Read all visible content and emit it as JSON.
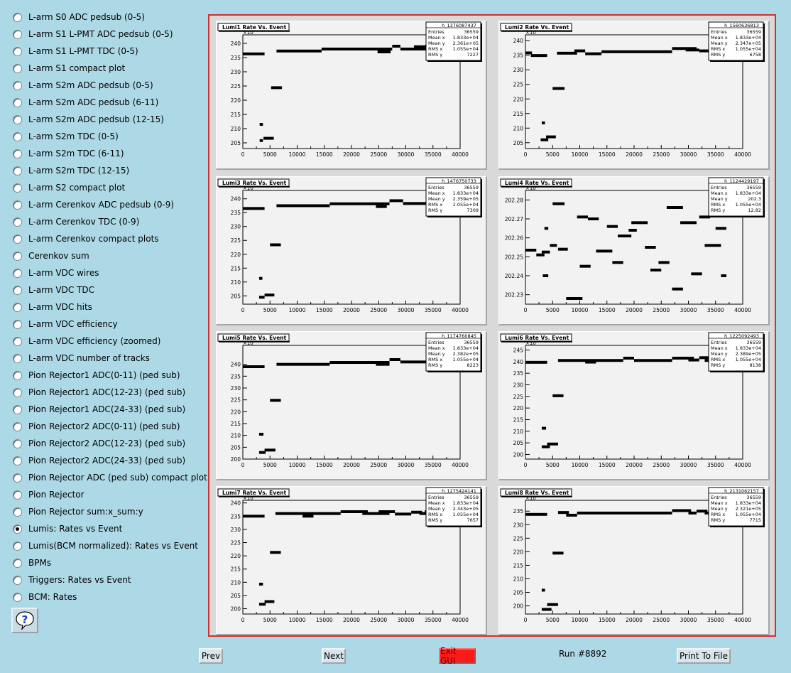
{
  "sidebar": {
    "items": [
      {
        "label": "L-arm S0 ADC pedsub (0-5)",
        "checked": false
      },
      {
        "label": "L-arm S1 L-PMT ADC pedsub (0-5)",
        "checked": false
      },
      {
        "label": "L-arm S1 L-PMT TDC (0-5)",
        "checked": false
      },
      {
        "label": "L-arm S1 compact plot",
        "checked": false
      },
      {
        "label": "L-arm S2m ADC pedsub (0-5)",
        "checked": false
      },
      {
        "label": "L-arm S2m ADC pedsub (6-11)",
        "checked": false
      },
      {
        "label": "L-arm S2m ADC pedsub (12-15)",
        "checked": false
      },
      {
        "label": "L-arm S2m TDC (0-5)",
        "checked": false
      },
      {
        "label": "L-arm S2m TDC (6-11)",
        "checked": false
      },
      {
        "label": "L-arm S2m TDC (12-15)",
        "checked": false
      },
      {
        "label": "L-arm S2 compact plot",
        "checked": false
      },
      {
        "label": "L-arm Cerenkov ADC pedsub (0-9)",
        "checked": false
      },
      {
        "label": "L-arm Cerenkov TDC (0-9)",
        "checked": false
      },
      {
        "label": "L-arm Cerenkov compact plots",
        "checked": false
      },
      {
        "label": "Cerenkov sum",
        "checked": false
      },
      {
        "label": "L-arm VDC wires",
        "checked": false
      },
      {
        "label": "L-arm VDC TDC",
        "checked": false
      },
      {
        "label": "L-arm VDC hits",
        "checked": false
      },
      {
        "label": "L-arm VDC efficiency",
        "checked": false
      },
      {
        "label": "L-arm VDC efficiency (zoomed)",
        "checked": false
      },
      {
        "label": "L-arm VDC number of tracks",
        "checked": false
      },
      {
        "label": "Pion Rejector1 ADC(0-11) (ped sub)",
        "checked": false
      },
      {
        "label": "Pion Rejector1 ADC(12-23) (ped sub)",
        "checked": false
      },
      {
        "label": "Pion Rejector1 ADC(24-33) (ped sub)",
        "checked": false
      },
      {
        "label": "Pion Rejector2 ADC(0-11) (ped sub)",
        "checked": false
      },
      {
        "label": "Pion Rejector2 ADC(12-23) (ped sub)",
        "checked": false
      },
      {
        "label": "Pion Rejector2 ADC(24-33) (ped sub)",
        "checked": false
      },
      {
        "label": "Pion Rejector ADC (ped sub) compact plot",
        "checked": false
      },
      {
        "label": "Pion Rejector",
        "checked": false
      },
      {
        "label": "Pion Rejector sum:x_sum:y",
        "checked": false
      },
      {
        "label": "Lumis: Rates vs Event",
        "checked": true
      },
      {
        "label": "Lumis(BCM normalized): Rates vs Event",
        "checked": false
      },
      {
        "label": "BPMs",
        "checked": false
      },
      {
        "label": "Triggers: Rates vs Event",
        "checked": false
      },
      {
        "label": "BCM: Rates",
        "checked": false
      }
    ],
    "help_icon": "question-mark-icon"
  },
  "footer": {
    "prev_label": "Prev",
    "next_label": "Next",
    "exit_label": "Exit GUI",
    "run_label": "Run #8892",
    "print_label": "Print To File",
    "exit_color": "#ff1a1a"
  },
  "chart_data": [
    {
      "type": "scatter",
      "title": "Lumi1 Rate Vs. Event",
      "exponent_label": "×10",
      "xlim": [
        0,
        40000
      ],
      "ylim": [
        203,
        243
      ],
      "xticks": [
        0,
        5000,
        10000,
        15000,
        20000,
        25000,
        30000,
        35000,
        40000
      ],
      "yticks": [
        205,
        210,
        215,
        220,
        225,
        230,
        235,
        240
      ],
      "stats": {
        "name": "h_1376087437",
        "entries": "36559",
        "mean_x": "1.833e+04",
        "mean_y": "2.361e+05",
        "rms_x": "1.055e+04",
        "rms_y": "7227"
      },
      "segments": [
        [
          0,
          4000,
          236.3
        ],
        [
          3100,
          3700,
          211.5
        ],
        [
          3100,
          3700,
          205.8
        ],
        [
          3800,
          5700,
          206.6
        ],
        [
          5200,
          7200,
          224.4
        ],
        [
          6200,
          14500,
          237.3
        ],
        [
          14500,
          27500,
          238.0
        ],
        [
          24800,
          27200,
          237.0
        ],
        [
          27500,
          29000,
          239.0
        ],
        [
          29000,
          36000,
          238.0
        ],
        [
          31500,
          33500,
          238.8
        ],
        [
          33500,
          36500,
          239.0
        ]
      ]
    },
    {
      "type": "scatter",
      "title": "Lumi2 Rate Vs. Event",
      "exponent_label": "×10",
      "xlim": [
        0,
        40000
      ],
      "ylim": [
        203,
        242
      ],
      "xticks": [
        0,
        5000,
        10000,
        15000,
        20000,
        25000,
        30000,
        35000,
        40000
      ],
      "yticks": [
        205,
        210,
        215,
        220,
        225,
        230,
        235,
        240
      ],
      "stats": {
        "name": "h_1560636813",
        "entries": "36559",
        "mean_x": "1.833e+04",
        "mean_y": "2.347e+05",
        "rms_x": "1.055e+04",
        "rms_y": "6758"
      },
      "segments": [
        [
          0,
          1200,
          235.8
        ],
        [
          1000,
          4000,
          234.9
        ],
        [
          3000,
          3600,
          211.8
        ],
        [
          2800,
          4200,
          206.0
        ],
        [
          3800,
          5600,
          207.0
        ],
        [
          5000,
          7200,
          223.6
        ],
        [
          5800,
          9500,
          235.7
        ],
        [
          9000,
          11000,
          236.5
        ],
        [
          11000,
          14000,
          235.5
        ],
        [
          14000,
          27000,
          236.2
        ],
        [
          27000,
          31500,
          237.3
        ],
        [
          29500,
          32000,
          236.8
        ],
        [
          32000,
          34000,
          236.5
        ],
        [
          34000,
          36500,
          237.2
        ]
      ]
    },
    {
      "type": "scatter",
      "title": "Lumi3 Rate Vs. Event",
      "exponent_label": "×10",
      "xlim": [
        0,
        40000
      ],
      "ylim": [
        202,
        243
      ],
      "xticks": [
        0,
        5000,
        10000,
        15000,
        20000,
        25000,
        30000,
        35000,
        40000
      ],
      "yticks": [
        205,
        210,
        215,
        220,
        225,
        230,
        235,
        240
      ],
      "stats": {
        "name": "h_1476750733",
        "entries": "36559",
        "mean_x": "1.833e+04",
        "mean_y": "2.359e+05",
        "rms_x": "1.055e+04",
        "rms_y": "7309"
      },
      "segments": [
        [
          0,
          4000,
          236.5
        ],
        [
          3000,
          3600,
          211.3
        ],
        [
          3000,
          4000,
          204.5
        ],
        [
          4000,
          5800,
          205.3
        ],
        [
          5000,
          7000,
          223.4
        ],
        [
          6200,
          16000,
          237.5
        ],
        [
          16000,
          27000,
          238.2
        ],
        [
          24500,
          26500,
          237.2
        ],
        [
          27000,
          29500,
          239.3
        ],
        [
          29500,
          36500,
          238.3
        ]
      ]
    },
    {
      "type": "scatter",
      "title": "Lumi4 Rate Vs. Event",
      "exponent_label": "×10",
      "xlim": [
        0,
        40000
      ],
      "ylim": [
        202.225,
        202.285
      ],
      "xticks": [
        0,
        5000,
        10000,
        15000,
        20000,
        25000,
        30000,
        35000,
        40000
      ],
      "yticks": [
        202.23,
        202.24,
        202.25,
        202.26,
        202.27,
        202.28
      ],
      "stats": {
        "name": "h_1124429197",
        "entries": "36559",
        "mean_x": "1.833e+04",
        "mean_y": "202.3",
        "rms_x": "1.055e+04",
        "rms_y": "12.82"
      },
      "segments": [
        [
          0,
          2000,
          202.2535
        ],
        [
          2000,
          3500,
          202.251
        ],
        [
          3000,
          4500,
          202.2525
        ],
        [
          3500,
          4200,
          202.265
        ],
        [
          3200,
          4200,
          202.24
        ],
        [
          4500,
          5800,
          202.256
        ],
        [
          5000,
          7200,
          202.278
        ],
        [
          6000,
          7800,
          202.254
        ],
        [
          7500,
          10500,
          202.228
        ],
        [
          9500,
          11500,
          202.271
        ],
        [
          10000,
          12000,
          202.245
        ],
        [
          11500,
          13500,
          202.27
        ],
        [
          13000,
          16000,
          202.253
        ],
        [
          15000,
          17000,
          202.266
        ],
        [
          16000,
          18000,
          202.247
        ],
        [
          17000,
          19500,
          202.261
        ],
        [
          19000,
          20500,
          202.264
        ],
        [
          19500,
          22500,
          202.268
        ],
        [
          22000,
          24000,
          202.255
        ],
        [
          23000,
          25000,
          202.243
        ],
        [
          24500,
          26500,
          202.247
        ],
        [
          26000,
          29000,
          202.276
        ],
        [
          27000,
          29000,
          202.233
        ],
        [
          28500,
          31500,
          202.268
        ],
        [
          30500,
          32500,
          202.241
        ],
        [
          32000,
          34000,
          202.271
        ],
        [
          33000,
          36000,
          202.256
        ],
        [
          35000,
          37000,
          202.265
        ],
        [
          36000,
          37000,
          202.24
        ]
      ]
    },
    {
      "type": "scatter",
      "title": "Lumi5 Rate Vs. Event",
      "exponent_label": "×10",
      "xlim": [
        0,
        40000
      ],
      "ylim": [
        200,
        248
      ],
      "xticks": [
        0,
        5000,
        10000,
        15000,
        20000,
        25000,
        30000,
        35000,
        40000
      ],
      "yticks": [
        200,
        205,
        210,
        215,
        220,
        225,
        230,
        235,
        240
      ],
      "stats": {
        "name": "h_1174760845",
        "entries": "36559",
        "mean_x": "1.833e+04",
        "mean_y": "2.382e+05",
        "rms_x": "1.055e+04",
        "rms_y": "8223"
      },
      "segments": [
        [
          0,
          4000,
          239.0
        ],
        [
          3000,
          3800,
          210.5
        ],
        [
          3000,
          4200,
          202.8
        ],
        [
          4000,
          6000,
          203.8
        ],
        [
          5000,
          7000,
          224.8
        ],
        [
          6200,
          16000,
          240.0
        ],
        [
          16000,
          27000,
          240.8
        ],
        [
          24500,
          27000,
          240.0
        ],
        [
          27000,
          29000,
          242.0
        ],
        [
          29000,
          36500,
          241.0
        ]
      ]
    },
    {
      "type": "scatter",
      "title": "Lumi6 Rate Vs. Event",
      "exponent_label": "×10",
      "xlim": [
        0,
        40000
      ],
      "ylim": [
        198,
        247
      ],
      "xticks": [
        0,
        5000,
        10000,
        15000,
        20000,
        25000,
        30000,
        35000,
        40000
      ],
      "yticks": [
        200,
        205,
        210,
        215,
        220,
        225,
        230,
        235,
        240,
        245
      ],
      "stats": {
        "name": "h_1225092493",
        "entries": "36559",
        "mean_x": "1.833e+04",
        "mean_y": "2.389e+05",
        "rms_x": "1.055e+04",
        "rms_y": "8138"
      },
      "segments": [
        [
          0,
          4000,
          239.7
        ],
        [
          3000,
          3800,
          211.3
        ],
        [
          3000,
          4500,
          203.3
        ],
        [
          4000,
          6000,
          204.5
        ],
        [
          5000,
          7000,
          225.3
        ],
        [
          6000,
          18000,
          240.5
        ],
        [
          11000,
          13000,
          239.8
        ],
        [
          18000,
          20000,
          241.5
        ],
        [
          20000,
          27000,
          240.5
        ],
        [
          27000,
          31000,
          241.5
        ],
        [
          30000,
          32000,
          240.7
        ],
        [
          32000,
          35000,
          241.7
        ],
        [
          33000,
          36500,
          240.5
        ]
      ]
    },
    {
      "type": "scatter",
      "title": "Lumi7 Rate Vs. Event",
      "exponent_label": "×10",
      "xlim": [
        0,
        40000
      ],
      "ylim": [
        198,
        241
      ],
      "xticks": [
        0,
        5000,
        10000,
        15000,
        20000,
        25000,
        30000,
        35000,
        40000
      ],
      "yticks": [
        200,
        205,
        210,
        215,
        220,
        225,
        230,
        235,
        240
      ],
      "stats": {
        "name": "h_1275424141",
        "entries": "36559",
        "mean_x": "1.833e+04",
        "mean_y": "2.343e+05",
        "rms_x": "1.055e+04",
        "rms_y": "7657"
      },
      "segments": [
        [
          0,
          4000,
          235.0
        ],
        [
          3000,
          3700,
          209.3
        ],
        [
          3000,
          4200,
          201.7
        ],
        [
          4000,
          5800,
          202.7
        ],
        [
          5000,
          7000,
          221.3
        ],
        [
          6000,
          18000,
          236.0
        ],
        [
          11000,
          13000,
          235.0
        ],
        [
          18000,
          23000,
          236.7
        ],
        [
          22000,
          27000,
          236.0
        ],
        [
          25000,
          28000,
          236.7
        ],
        [
          28000,
          31000,
          235.8
        ],
        [
          31000,
          33000,
          236.5
        ],
        [
          32500,
          36500,
          236.0
        ],
        [
          33500,
          35500,
          236.7
        ]
      ]
    },
    {
      "type": "scatter",
      "title": "Lumi8 Rate Vs. Event",
      "exponent_label": "×10",
      "xlim": [
        0,
        40000
      ],
      "ylim": [
        197,
        239
      ],
      "xticks": [
        0,
        5000,
        10000,
        15000,
        20000,
        25000,
        30000,
        35000,
        40000
      ],
      "yticks": [
        200,
        205,
        210,
        215,
        220,
        225,
        230,
        235
      ],
      "stats": {
        "name": "h_2131062157",
        "entries": "36559",
        "mean_x": "1.833e+04",
        "mean_y": "2.321e+05",
        "rms_x": "1.055e+04",
        "rms_y": "7715"
      },
      "segments": [
        [
          0,
          4000,
          233.8
        ],
        [
          3000,
          3600,
          205.8
        ],
        [
          3000,
          4800,
          198.7
        ],
        [
          4000,
          6000,
          200.5
        ],
        [
          5000,
          7000,
          219.5
        ],
        [
          6000,
          8000,
          234.5
        ],
        [
          7500,
          9500,
          233.5
        ],
        [
          9500,
          27000,
          234.3
        ],
        [
          27000,
          30500,
          235.2
        ],
        [
          30000,
          31500,
          234.3
        ],
        [
          31500,
          33500,
          235.0
        ],
        [
          33000,
          36500,
          234.3
        ]
      ]
    }
  ]
}
